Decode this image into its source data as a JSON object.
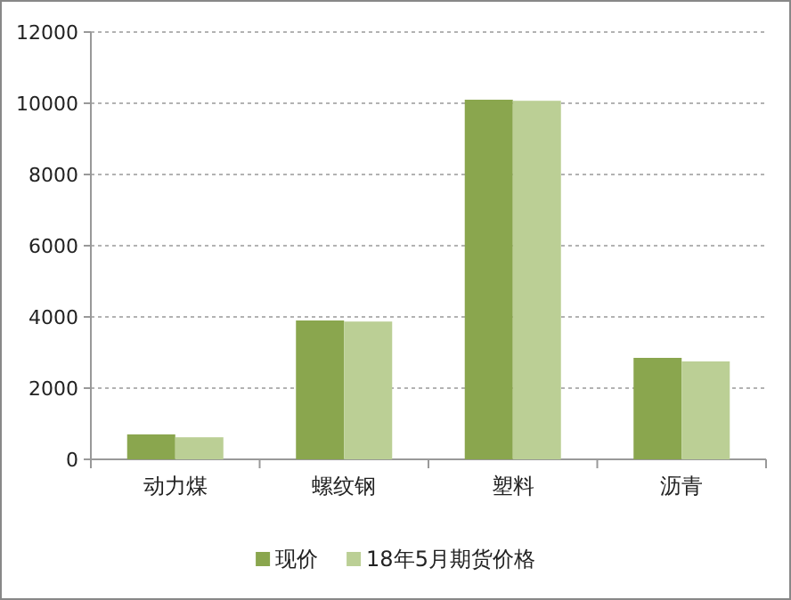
{
  "chart_data": {
    "type": "bar",
    "categories": [
      "动力煤",
      "螺纹钢",
      "塑料",
      "沥青"
    ],
    "series": [
      {
        "name": "现价",
        "color": "#8aa64e",
        "values": [
          700,
          3900,
          10100,
          2850
        ]
      },
      {
        "name": "18年5月期货价格",
        "color": "#bbcf95",
        "values": [
          620,
          3870,
          10070,
          2750
        ]
      }
    ],
    "ylim": [
      0,
      12000
    ],
    "yticks": [
      0,
      2000,
      4000,
      6000,
      8000,
      10000,
      12000
    ],
    "grid": "y",
    "legend": "bottom"
  }
}
